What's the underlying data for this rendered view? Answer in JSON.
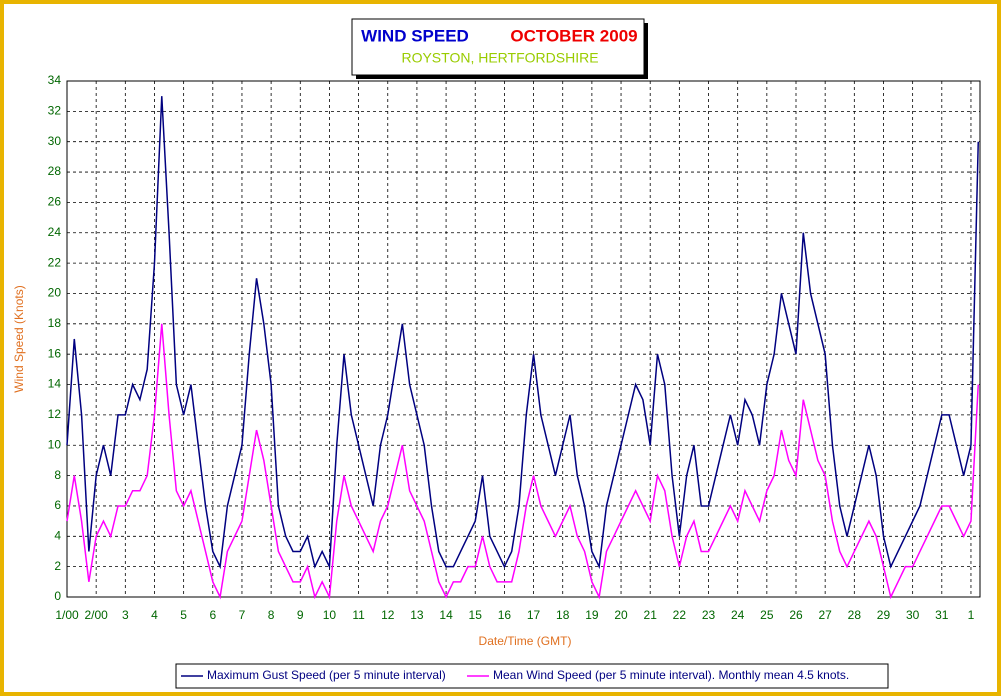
{
  "chart_data": {
    "type": "line",
    "title": "WIND SPEED",
    "title_period": "OCTOBER 2009",
    "subtitle": "ROYSTON, HERTFORDSHIRE",
    "xlabel": "Date/Time (GMT)",
    "ylabel": "Wind Speed (Knots)",
    "grid": true,
    "xlim": [
      0,
      31.31
    ],
    "ylim": [
      0,
      34
    ],
    "yticks": [
      0,
      2,
      4,
      6,
      8,
      10,
      12,
      14,
      16,
      18,
      20,
      22,
      24,
      26,
      28,
      30,
      32,
      34
    ],
    "xticks": [
      {
        "value": 0,
        "label": "1/00"
      },
      {
        "value": 1,
        "label": "2/00"
      },
      {
        "value": 2,
        "label": "3"
      },
      {
        "value": 3,
        "label": "4"
      },
      {
        "value": 4,
        "label": "5"
      },
      {
        "value": 5,
        "label": "6"
      },
      {
        "value": 6,
        "label": "7"
      },
      {
        "value": 7,
        "label": "8"
      },
      {
        "value": 8,
        "label": "9"
      },
      {
        "value": 9,
        "label": "10"
      },
      {
        "value": 10,
        "label": "11"
      },
      {
        "value": 11,
        "label": "12"
      },
      {
        "value": 12,
        "label": "13"
      },
      {
        "value": 13,
        "label": "14"
      },
      {
        "value": 14,
        "label": "15"
      },
      {
        "value": 15,
        "label": "16"
      },
      {
        "value": 16,
        "label": "17"
      },
      {
        "value": 17,
        "label": "18"
      },
      {
        "value": 18,
        "label": "19"
      },
      {
        "value": 19,
        "label": "20"
      },
      {
        "value": 20,
        "label": "21"
      },
      {
        "value": 21,
        "label": "22"
      },
      {
        "value": 22,
        "label": "23"
      },
      {
        "value": 23,
        "label": "24"
      },
      {
        "value": 24,
        "label": "25"
      },
      {
        "value": 25,
        "label": "26"
      },
      {
        "value": 26,
        "label": "27"
      },
      {
        "value": 27,
        "label": "28"
      },
      {
        "value": 28,
        "label": "29"
      },
      {
        "value": 29,
        "label": "30"
      },
      {
        "value": 30,
        "label": "31"
      },
      {
        "value": 31,
        "label": "1"
      }
    ],
    "x": [
      0,
      0.25,
      0.5,
      0.75,
      1,
      1.25,
      1.5,
      1.75,
      2,
      2.25,
      2.5,
      2.75,
      3,
      3.25,
      3.5,
      3.75,
      4,
      4.25,
      4.5,
      4.75,
      5,
      5.25,
      5.5,
      5.75,
      6,
      6.25,
      6.5,
      6.75,
      7,
      7.25,
      7.5,
      7.75,
      8,
      8.25,
      8.5,
      8.75,
      9,
      9.25,
      9.5,
      9.75,
      10,
      10.25,
      10.5,
      10.75,
      11,
      11.25,
      11.5,
      11.75,
      12,
      12.25,
      12.5,
      12.75,
      13,
      13.25,
      13.5,
      13.75,
      14,
      14.25,
      14.5,
      14.75,
      15,
      15.25,
      15.5,
      15.75,
      16,
      16.25,
      16.5,
      16.75,
      17,
      17.25,
      17.5,
      17.75,
      18,
      18.25,
      18.5,
      18.75,
      19,
      19.25,
      19.5,
      19.75,
      20,
      20.25,
      20.5,
      20.75,
      21,
      21.25,
      21.5,
      21.75,
      22,
      22.25,
      22.5,
      22.75,
      23,
      23.25,
      23.5,
      23.75,
      24,
      24.25,
      24.5,
      24.75,
      25,
      25.25,
      25.5,
      25.75,
      26,
      26.25,
      26.5,
      26.75,
      27,
      27.25,
      27.5,
      27.75,
      28,
      28.25,
      28.5,
      28.75,
      29,
      29.25,
      29.5,
      29.75,
      30,
      30.25,
      30.5,
      30.75,
      31,
      31.25
    ],
    "series": [
      {
        "name": "Maximum Gust Speed (per 5 minute interval)",
        "color": "#000080",
        "values": [
          10,
          17,
          12,
          3,
          8,
          10,
          8,
          12,
          12,
          14,
          13,
          15,
          22,
          33,
          24,
          14,
          12,
          14,
          10,
          6,
          3,
          2,
          6,
          8,
          10,
          16,
          21,
          18,
          14,
          6,
          4,
          3,
          3,
          4,
          2,
          3,
          2,
          10,
          16,
          12,
          10,
          8,
          6,
          10,
          12,
          15,
          18,
          14,
          12,
          10,
          6,
          3,
          2,
          2,
          3,
          4,
          5,
          8,
          4,
          3,
          2,
          3,
          6,
          12,
          16,
          12,
          10,
          8,
          10,
          12,
          8,
          6,
          3,
          2,
          6,
          8,
          10,
          12,
          14,
          13,
          10,
          16,
          14,
          8,
          4,
          8,
          10,
          6,
          6,
          8,
          10,
          12,
          10,
          13,
          12,
          10,
          14,
          16,
          20,
          18,
          16,
          24,
          20,
          18,
          16,
          10,
          6,
          4,
          6,
          8,
          10,
          8,
          4,
          2,
          3,
          4,
          5,
          6,
          8,
          10,
          12,
          12,
          10,
          8,
          10,
          30
        ]
      },
      {
        "name": "Mean Wind Speed (per 5 minute interval). Monthly mean 4.5 knots.",
        "color": "#ff00ff",
        "values": [
          5,
          8,
          5,
          1,
          4,
          5,
          4,
          6,
          6,
          7,
          7,
          8,
          12,
          18,
          12,
          7,
          6,
          7,
          5,
          3,
          1,
          0,
          3,
          4,
          5,
          8,
          11,
          9,
          6,
          3,
          2,
          1,
          1,
          2,
          0,
          1,
          0,
          5,
          8,
          6,
          5,
          4,
          3,
          5,
          6,
          8,
          10,
          7,
          6,
          5,
          3,
          1,
          0,
          1,
          1,
          2,
          2,
          4,
          2,
          1,
          1,
          1,
          3,
          6,
          8,
          6,
          5,
          4,
          5,
          6,
          4,
          3,
          1,
          0,
          3,
          4,
          5,
          6,
          7,
          6,
          5,
          8,
          7,
          4,
          2,
          4,
          5,
          3,
          3,
          4,
          5,
          6,
          5,
          7,
          6,
          5,
          7,
          8,
          11,
          9,
          8,
          13,
          11,
          9,
          8,
          5,
          3,
          2,
          3,
          4,
          5,
          4,
          2,
          0,
          1,
          2,
          2,
          3,
          4,
          5,
          6,
          6,
          5,
          4,
          5,
          14
        ]
      }
    ]
  }
}
